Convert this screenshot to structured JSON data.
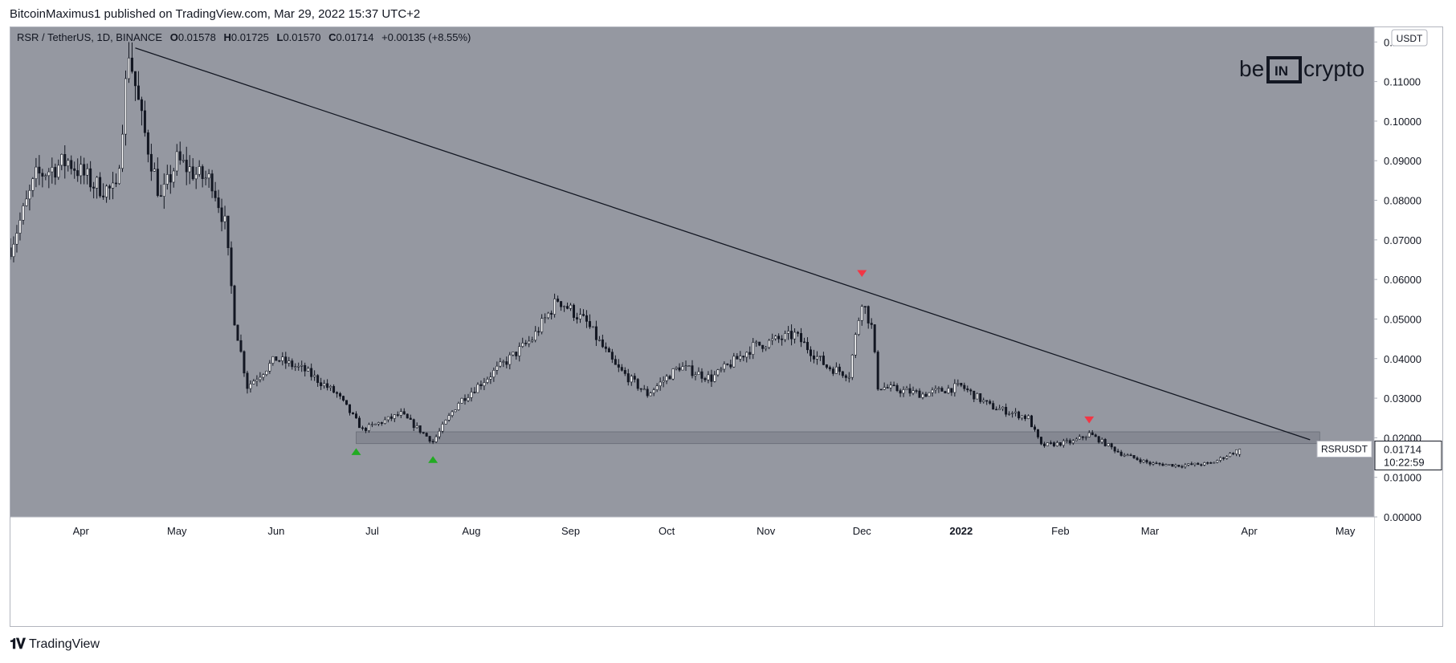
{
  "publisher_line": "BitcoinMaximus1 published on TradingView.com, Mar 29, 2022 15:37 UTC+2",
  "footer": {
    "brand": "TradingView",
    "logo_icon": "tradingview-logo-icon"
  },
  "watermark": {
    "text": "be[IN]crypto",
    "icon": "beincrypto-logo"
  },
  "colors": {
    "plot_bg": "#9598a1",
    "candle": "#131722",
    "candle_body_up": "#ffffff",
    "trendline": "#131722",
    "support_zone": "#787b86",
    "top_marker": "#f23645",
    "bottom_marker": "#22ab22",
    "axis_bg": "#ffffff",
    "text": "#131722"
  },
  "chart_data": {
    "type": "candlestick",
    "symbol_line": {
      "pair": "RSR / TetherUS, 1D, BINANCE",
      "o_label": "O",
      "o": "0.01578",
      "h_label": "H",
      "h": "0.01725",
      "l_label": "L",
      "l": "0.01570",
      "c_label": "C",
      "c": "0.01714",
      "change": "+0.00135 (+8.55%)"
    },
    "currency": "USDT",
    "ylim": [
      0,
      0.12
    ],
    "y_ticks": [
      "0.12000",
      "0.11000",
      "0.10000",
      "0.09000",
      "0.08000",
      "0.07000",
      "0.06000",
      "0.05000",
      "0.04000",
      "0.03000",
      "0.02000",
      "0.01000",
      "0.00000"
    ],
    "x_ticks": [
      "Apr",
      "May",
      "Jun",
      "Jul",
      "Aug",
      "Sep",
      "Oct",
      "Nov",
      "Dec",
      "2022",
      "Feb",
      "Mar",
      "Apr",
      "May"
    ],
    "x_tick_dates": [
      "2021-04-01",
      "2021-05-01",
      "2021-06-01",
      "2021-07-01",
      "2021-08-01",
      "2021-09-01",
      "2021-10-01",
      "2021-11-01",
      "2021-12-01",
      "2022-01-01",
      "2022-02-01",
      "2022-03-01",
      "2022-04-01",
      "2022-05-01"
    ],
    "x_range": [
      "2021-03-10",
      "2022-05-10"
    ],
    "last_price": {
      "label": "RSRUSDT",
      "value": "0.01714",
      "countdown": "10:22:59"
    },
    "price_path": [
      [
        "2021-03-10",
        0.068
      ],
      [
        "2021-03-18",
        0.086
      ],
      [
        "2021-03-28",
        0.09
      ],
      [
        "2021-04-05",
        0.084
      ],
      [
        "2021-04-12",
        0.082
      ],
      [
        "2021-04-16",
        0.118
      ],
      [
        "2021-04-20",
        0.1
      ],
      [
        "2021-04-26",
        0.08
      ],
      [
        "2021-05-01",
        0.09
      ],
      [
        "2021-05-08",
        0.086
      ],
      [
        "2021-05-12",
        0.085
      ],
      [
        "2021-05-16",
        0.074
      ],
      [
        "2021-05-19",
        0.05
      ],
      [
        "2021-05-23",
        0.033
      ],
      [
        "2021-06-01",
        0.04
      ],
      [
        "2021-06-10",
        0.037
      ],
      [
        "2021-06-20",
        0.031
      ],
      [
        "2021-06-28",
        0.022
      ],
      [
        "2021-07-10",
        0.026
      ],
      [
        "2021-07-20",
        0.019
      ],
      [
        "2021-07-28",
        0.029
      ],
      [
        "2021-08-10",
        0.038
      ],
      [
        "2021-08-20",
        0.045
      ],
      [
        "2021-08-28",
        0.055
      ],
      [
        "2021-09-06",
        0.049
      ],
      [
        "2021-09-15",
        0.038
      ],
      [
        "2021-09-25",
        0.031
      ],
      [
        "2021-10-05",
        0.038
      ],
      [
        "2021-10-15",
        0.035
      ],
      [
        "2021-10-28",
        0.043
      ],
      [
        "2021-11-10",
        0.046
      ],
      [
        "2021-11-20",
        0.038
      ],
      [
        "2021-11-27",
        0.036
      ],
      [
        "2021-12-01",
        0.055
      ],
      [
        "2021-12-04",
        0.048
      ],
      [
        "2021-12-06",
        0.033
      ],
      [
        "2021-12-20",
        0.031
      ],
      [
        "2022-01-01",
        0.033
      ],
      [
        "2022-01-10",
        0.028
      ],
      [
        "2022-01-22",
        0.025
      ],
      [
        "2022-01-26",
        0.018
      ],
      [
        "2022-02-05",
        0.019
      ],
      [
        "2022-02-10",
        0.021
      ],
      [
        "2022-02-20",
        0.016
      ],
      [
        "2022-03-01",
        0.0135
      ],
      [
        "2022-03-10",
        0.013
      ],
      [
        "2022-03-20",
        0.0135
      ],
      [
        "2022-03-29",
        0.0171
      ]
    ],
    "trendline": [
      [
        "2021-04-18",
        0.1185
      ],
      [
        "2022-04-20",
        0.0195
      ]
    ],
    "support_zone": {
      "x": [
        "2021-06-26",
        "2022-04-23"
      ],
      "y": [
        0.0185,
        0.0215
      ]
    },
    "markers": [
      {
        "type": "bottom",
        "date": "2021-06-26",
        "price": 0.0165
      },
      {
        "type": "bottom",
        "date": "2021-07-20",
        "price": 0.0145
      },
      {
        "type": "top",
        "date": "2021-12-01",
        "price": 0.0615
      },
      {
        "type": "top",
        "date": "2022-02-10",
        "price": 0.0245
      }
    ]
  }
}
